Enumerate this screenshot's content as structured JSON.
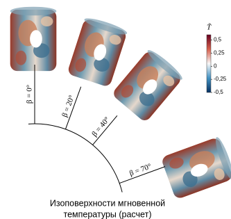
{
  "figure": {
    "panels": [
      {
        "label": "β = 0°",
        "angle": 0
      },
      {
        "label": "β = 20°",
        "angle": 20
      },
      {
        "label": "β = 40°",
        "angle": 40
      },
      {
        "label": "β = 70°",
        "angle": 70
      }
    ],
    "colorbar": {
      "title": "T̃",
      "lim": [
        -0.5,
        0.6
      ],
      "ticks": [
        {
          "value": 0.5,
          "label": "0,5"
        },
        {
          "value": 0.25,
          "label": "0,25"
        },
        {
          "value": 0,
          "label": "0"
        },
        {
          "value": -0.25,
          "label": "-0,25"
        },
        {
          "value": -0.5,
          "label": "-0,5"
        }
      ]
    },
    "caption": [
      "Изоповерхности мгновенной",
      "температуры (расчет)"
    ]
  }
}
